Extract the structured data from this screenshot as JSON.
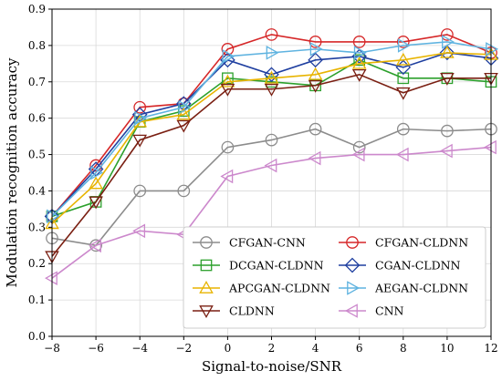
{
  "chart_data": {
    "type": "line",
    "title": "",
    "xlabel": "Signal-to-noise/SNR",
    "ylabel": "Modulation recognition accuracy",
    "x": [
      -8,
      -6,
      -4,
      -2,
      0,
      2,
      4,
      6,
      8,
      10,
      12
    ],
    "xlim": [
      -8,
      12
    ],
    "ylim": [
      0.0,
      0.9
    ],
    "xticks": [
      "−8",
      "−6",
      "−4",
      "−2",
      "0",
      "2",
      "4",
      "6",
      "8",
      "10",
      "12"
    ],
    "yticks": [
      "0.0",
      "0.1",
      "0.2",
      "0.3",
      "0.4",
      "0.5",
      "0.6",
      "0.7",
      "0.8",
      "0.9"
    ],
    "grid": true,
    "legend_position": "bottom-right",
    "series": [
      {
        "name": "CFGAN-CNN",
        "color": "#8c8c8c",
        "marker": "circle",
        "values": [
          0.27,
          0.25,
          0.4,
          0.4,
          0.52,
          0.54,
          0.57,
          0.52,
          0.57,
          0.565,
          0.57
        ]
      },
      {
        "name": "CFGAN-CLDNN",
        "color": "#d62728",
        "marker": "circle",
        "values": [
          0.33,
          0.47,
          0.63,
          0.64,
          0.79,
          0.83,
          0.81,
          0.81,
          0.81,
          0.83,
          0.78
        ]
      },
      {
        "name": "DCGAN-CLDNN",
        "color": "#2ca02c",
        "marker": "square",
        "values": [
          0.33,
          0.37,
          0.59,
          0.62,
          0.71,
          0.7,
          0.69,
          0.76,
          0.71,
          0.71,
          0.7
        ]
      },
      {
        "name": "CGAN-CLDNN",
        "color": "#1f3fa0",
        "marker": "diamond",
        "values": [
          0.33,
          0.46,
          0.61,
          0.64,
          0.76,
          0.72,
          0.76,
          0.77,
          0.74,
          0.78,
          0.765
        ]
      },
      {
        "name": "APCGAN-CLDNN",
        "color": "#e8b400",
        "marker": "triangle-up",
        "values": [
          0.31,
          0.42,
          0.59,
          0.61,
          0.7,
          0.71,
          0.72,
          0.75,
          0.76,
          0.78,
          0.775
        ]
      },
      {
        "name": "AEGAN-CLDNN",
        "color": "#5fb3e0",
        "marker": "triangle-right",
        "values": [
          0.33,
          0.45,
          0.6,
          0.63,
          0.77,
          0.78,
          0.79,
          0.78,
          0.8,
          0.81,
          0.79
        ]
      },
      {
        "name": "CLDNN",
        "color": "#7a1f12",
        "marker": "triangle-down",
        "values": [
          0.22,
          0.37,
          0.54,
          0.58,
          0.68,
          0.68,
          0.69,
          0.72,
          0.67,
          0.71,
          0.71
        ]
      },
      {
        "name": "CNN",
        "color": "#cc88cc",
        "marker": "triangle-left",
        "values": [
          0.16,
          0.25,
          0.29,
          0.28,
          0.44,
          0.47,
          0.49,
          0.5,
          0.5,
          0.51,
          0.52
        ]
      }
    ]
  }
}
